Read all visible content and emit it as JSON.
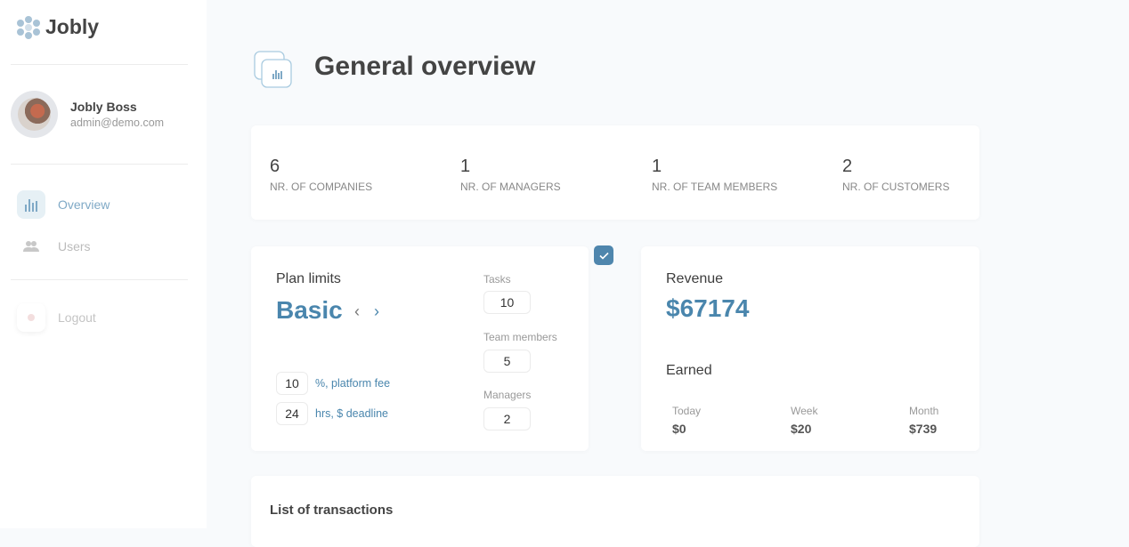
{
  "app": {
    "name": "Jobly"
  },
  "user": {
    "name": "Jobly Boss",
    "email": "admin@demo.com"
  },
  "nav": [
    {
      "label": "Overview",
      "icon": "bar-chart-icon",
      "active": true
    },
    {
      "label": "Users",
      "icon": "users-icon"
    },
    {
      "label": "Logout",
      "icon": "logout-icon"
    }
  ],
  "page": {
    "title": "General overview"
  },
  "stats": [
    {
      "value": "6",
      "label": "NR. OF COMPANIES"
    },
    {
      "value": "1",
      "label": "NR. OF MANAGERS"
    },
    {
      "value": "1",
      "label": "NR. OF TEAM MEMBERS"
    },
    {
      "value": "2",
      "label": "NR. OF CUSTOMERS"
    }
  ],
  "plan": {
    "title": "Plan limits",
    "name": "Basic",
    "fee_value": "10",
    "fee_label": "%, platform fee",
    "deadline_value": "24",
    "deadline_label": "hrs, $ deadline",
    "tasks_label": "Tasks",
    "tasks": "10",
    "team_label": "Team members",
    "team": "5",
    "managers_label": "Managers",
    "managers": "2"
  },
  "revenue": {
    "title": "Revenue",
    "value": "$67174",
    "earned_title": "Earned",
    "today_label": "Today",
    "today": "$0",
    "week_label": "Week",
    "week": "$20",
    "month_label": "Month",
    "month": "$739"
  },
  "transactions": {
    "title": "List of transactions"
  },
  "colors": {
    "accent": "#4a86ad",
    "check": "#4f86ad"
  }
}
